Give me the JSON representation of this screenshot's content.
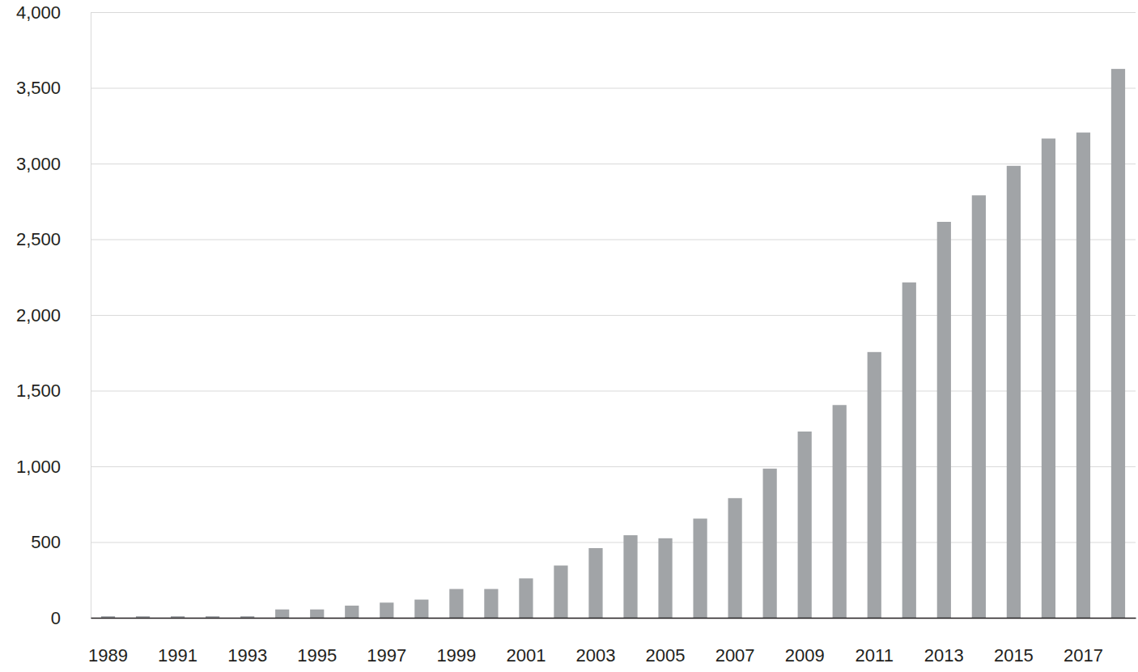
{
  "chart_data": {
    "type": "bar",
    "categories": [
      "1989",
      null,
      "1991",
      null,
      "1993",
      null,
      "1995",
      null,
      "1997",
      null,
      "1999",
      null,
      "2001",
      null,
      "2003",
      null,
      "2005",
      null,
      "2007",
      null,
      "2009",
      null,
      "2011",
      null,
      "2013",
      null,
      "2015",
      null,
      "2017",
      null
    ],
    "values": [
      10,
      10,
      10,
      10,
      10,
      55,
      55,
      80,
      100,
      120,
      190,
      190,
      260,
      345,
      460,
      545,
      525,
      655,
      790,
      985,
      1230,
      1405,
      1755,
      2215,
      2615,
      2790,
      2985,
      3165,
      3205,
      3625
    ],
    "color": "#a1a4a7",
    "ylim": [
      0,
      4000
    ],
    "yticks": [
      0,
      500,
      {
        "value": 1000,
        "label": "1,000"
      },
      {
        "value": 1500,
        "label": "1,500"
      },
      {
        "value": 2000,
        "label": "2,000"
      },
      {
        "value": 2500,
        "label": "2,500"
      },
      {
        "value": 3000,
        "label": "3,000"
      },
      {
        "value": 3500,
        "label": "3,500"
      },
      {
        "value": 4000,
        "label": "4,000"
      }
    ],
    "grid": true
  }
}
